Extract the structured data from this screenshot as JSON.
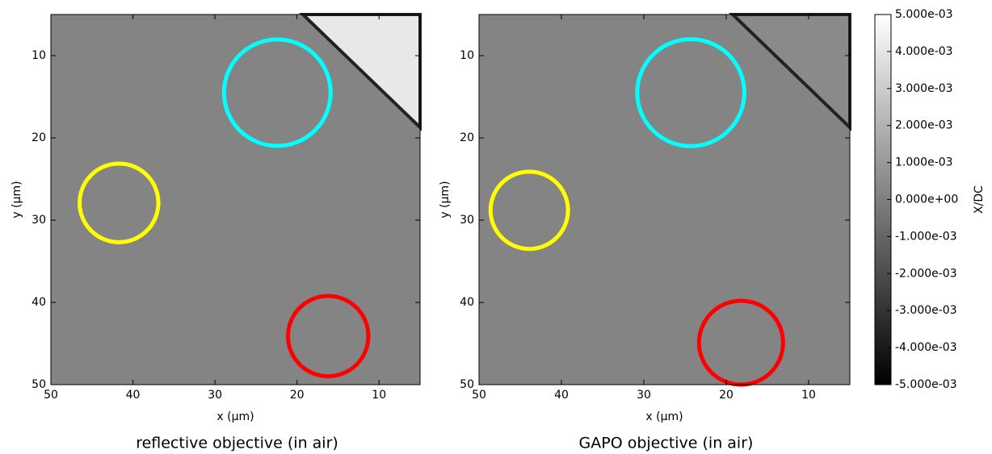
{
  "chart_data": [
    {
      "type": "image",
      "caption": "reflective objective (in air)",
      "x_label": "x (µm)",
      "y_label": "y (µm)",
      "xlim": [
        50,
        5
      ],
      "ylim": [
        50,
        5
      ],
      "xticks": [
        50,
        40,
        30,
        20,
        10
      ],
      "yticks": [
        10,
        20,
        30,
        40,
        50
      ],
      "circles": [
        {
          "color": "#00ffff",
          "x": 22.4,
          "y": 14.5,
          "r": 6.5
        },
        {
          "color": "#ffff00",
          "x": 41.7,
          "y": 27.9,
          "r": 4.8
        },
        {
          "color": "#ff0000",
          "x": 16.2,
          "y": 44.1,
          "r": 4.9
        }
      ]
    },
    {
      "type": "image",
      "caption": "GAPO objective (in air)",
      "x_label": "x (µm)",
      "y_label": "y (µm)",
      "xlim": [
        50,
        5
      ],
      "ylim": [
        50,
        5
      ],
      "xticks": [
        50,
        40,
        30,
        20,
        10
      ],
      "yticks": [
        10,
        20,
        30,
        40,
        50
      ],
      "circles": [
        {
          "color": "#00ffff",
          "x": 24.3,
          "y": 14.5,
          "r": 6.5
        },
        {
          "color": "#ffff00",
          "x": 43.9,
          "y": 28.8,
          "r": 4.7
        },
        {
          "color": "#ff0000",
          "x": 18.2,
          "y": 44.9,
          "r": 5.1
        }
      ],
      "colorbar": {
        "label": "X/DC",
        "lim": [
          -0.005,
          0.005
        ],
        "ticks": [
          {
            "value": 0.005,
            "label": "5.000e-03"
          },
          {
            "value": 0.004,
            "label": "4.000e-03"
          },
          {
            "value": 0.003,
            "label": "3.000e-03"
          },
          {
            "value": 0.002,
            "label": "2.000e-03"
          },
          {
            "value": 0.001,
            "label": "1.000e-03"
          },
          {
            "value": 0,
            "label": "0.000e+00"
          },
          {
            "value": -0.001,
            "label": "-1.000e-03"
          },
          {
            "value": -0.002,
            "label": "-2.000e-03"
          },
          {
            "value": -0.003,
            "label": "-3.000e-03"
          },
          {
            "value": -0.004,
            "label": "-4.000e-03"
          },
          {
            "value": -0.005,
            "label": "-5.000e-03"
          }
        ]
      }
    }
  ]
}
